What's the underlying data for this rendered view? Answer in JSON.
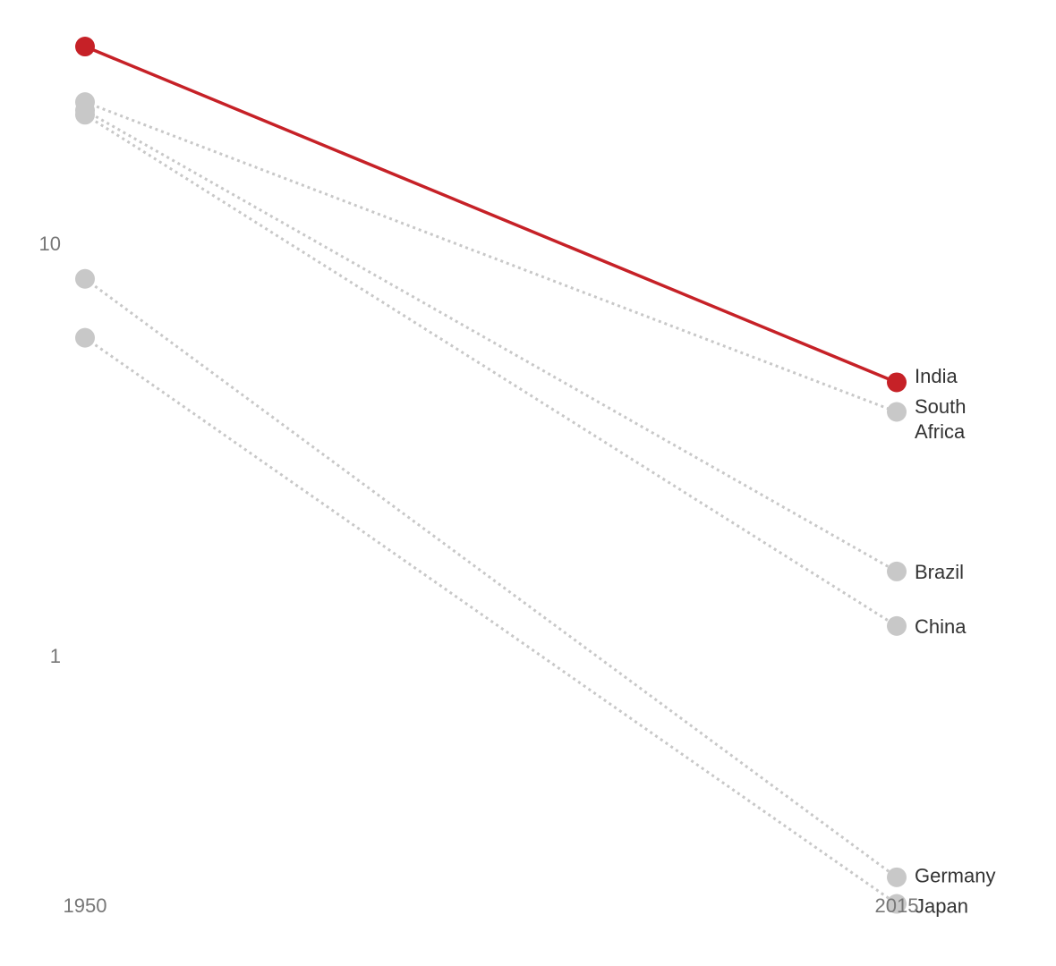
{
  "chart_data": {
    "type": "line",
    "title": "",
    "xlabel": "",
    "ylabel": "",
    "x": [
      "1950",
      "2015"
    ],
    "y_scale": "log",
    "ylim": [
      0.2,
      36
    ],
    "yticks": [
      {
        "value": 10,
        "label": "10"
      },
      {
        "value": 1,
        "label": "1"
      }
    ],
    "grid": false,
    "legend": "none",
    "highlight_color": "#c62127",
    "muted_color": "#c8c8c8",
    "series": [
      {
        "name": "India",
        "label": [
          "India"
        ],
        "values": [
          30,
          4.6
        ],
        "highlight": true
      },
      {
        "name": "South Africa",
        "label": [
          "South",
          "Africa"
        ],
        "values": [
          22,
          3.9
        ],
        "highlight": false
      },
      {
        "name": "Brazil",
        "label": [
          "Brazil"
        ],
        "values": [
          21,
          1.6
        ],
        "highlight": false
      },
      {
        "name": "China",
        "label": [
          "China"
        ],
        "values": [
          20.5,
          1.18
        ],
        "highlight": false
      },
      {
        "name": "Germany",
        "label": [
          "Germany"
        ],
        "values": [
          8.2,
          0.29
        ],
        "highlight": false
      },
      {
        "name": "Japan",
        "label": [
          "Japan"
        ],
        "values": [
          5.9,
          0.25
        ],
        "highlight": false
      }
    ]
  }
}
